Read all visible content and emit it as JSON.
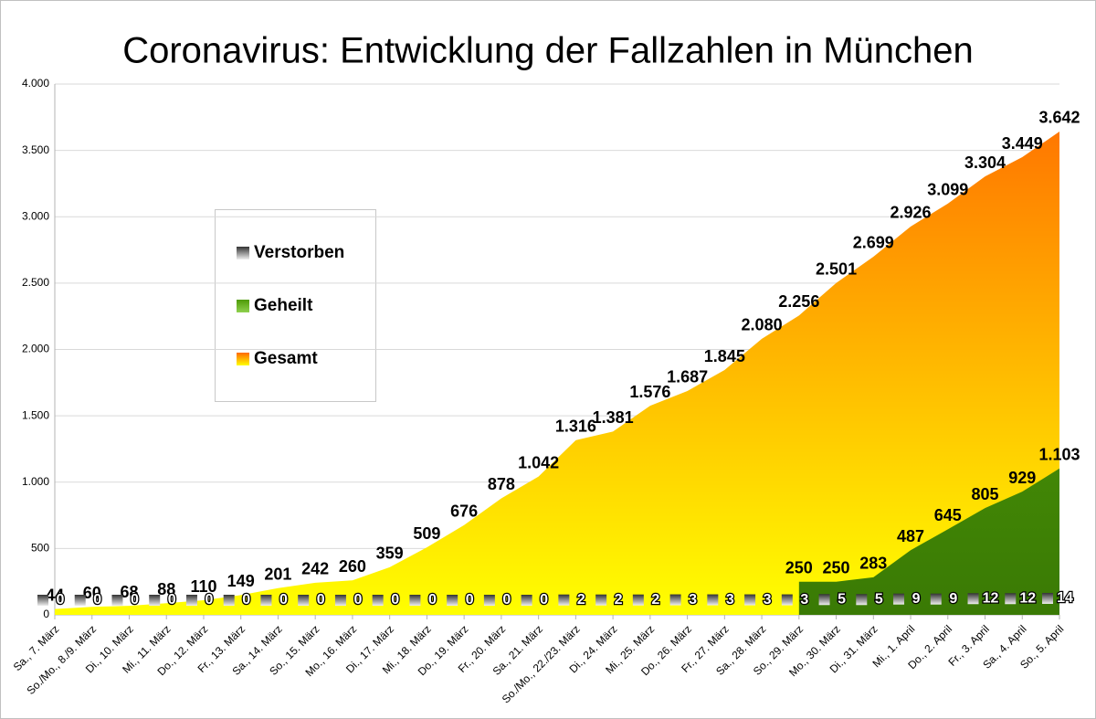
{
  "chart_data": {
    "type": "area",
    "title": "Coronavirus: Entwicklung der Fallzahlen in München",
    "categories": [
      "Sa., 7. März",
      "So./Mo., 8./9. März",
      "Di., 10. März",
      "Mi., 11. März",
      "Do., 12. März",
      "Fr., 13. März",
      "Sa., 14. März",
      "So., 15. März",
      "Mo., 16. März",
      "Di., 17. März",
      "Mi., 18. März",
      "Do., 19. März",
      "Fr., 20. März",
      "Sa., 21. März",
      "So./Mo., 22./23. März",
      "Di., 24. März",
      "Mi., 25. März",
      "Do., 26. März",
      "Fr., 27. März",
      "Sa., 28. März",
      "So., 29. März",
      "Mo., 30. März",
      "Di., 31. März",
      "Mi., 1. April",
      "Do., 2. April",
      "Fr., 3. April",
      "Sa., 4. April",
      "So., 5. April"
    ],
    "series": [
      {
        "name": "Gesamt",
        "color": "#ff6a00",
        "values": [
          44,
          60,
          68,
          88,
          110,
          149,
          201,
          242,
          260,
          359,
          509,
          676,
          878,
          1042,
          1316,
          1381,
          1576,
          1687,
          1845,
          2080,
          2256,
          2501,
          2699,
          2926,
          3099,
          3304,
          3449,
          3642
        ],
        "value_labels": [
          "44",
          "60",
          "68",
          "88",
          "110",
          "149",
          "201",
          "242",
          "260",
          "359",
          "509",
          "676",
          "878",
          "1.042",
          "1.316",
          "1.381",
          "1.576",
          "1.687",
          "1.845",
          "2.080",
          "2.256",
          "2.501",
          "2.699",
          "2.926",
          "3.099",
          "3.304",
          "3.449",
          "3.642"
        ]
      },
      {
        "name": "Geheilt",
        "color": "#4e9a06",
        "values": [
          null,
          null,
          null,
          null,
          null,
          null,
          null,
          null,
          null,
          null,
          null,
          null,
          null,
          null,
          null,
          null,
          null,
          null,
          null,
          null,
          250,
          250,
          283,
          487,
          645,
          805,
          929,
          1103
        ],
        "value_labels": [
          null,
          null,
          null,
          null,
          null,
          null,
          null,
          null,
          null,
          null,
          null,
          null,
          null,
          null,
          null,
          null,
          null,
          null,
          null,
          null,
          "250",
          "250",
          "283",
          "487",
          "645",
          "805",
          "929",
          "1.103"
        ]
      },
      {
        "name": "Verstorben",
        "color": "#333333",
        "values": [
          0,
          0,
          0,
          0,
          0,
          0,
          0,
          0,
          0,
          0,
          0,
          0,
          0,
          0,
          2,
          2,
          2,
          3,
          3,
          3,
          3,
          5,
          5,
          9,
          9,
          12,
          12,
          14
        ]
      }
    ],
    "ylim": [
      0,
      4000
    ],
    "yticks": [
      0,
      500,
      {
        "value": 1000,
        "label": "1.000"
      },
      {
        "value": 1500,
        "label": "1.500"
      },
      {
        "value": 2000,
        "label": "2.000"
      },
      {
        "value": 2500,
        "label": "2.500"
      },
      {
        "value": 3000,
        "label": "3.000"
      },
      {
        "value": 3500,
        "label": "3.500"
      },
      {
        "value": 4000,
        "label": "4.000"
      }
    ],
    "grid": true,
    "legend": "left"
  }
}
